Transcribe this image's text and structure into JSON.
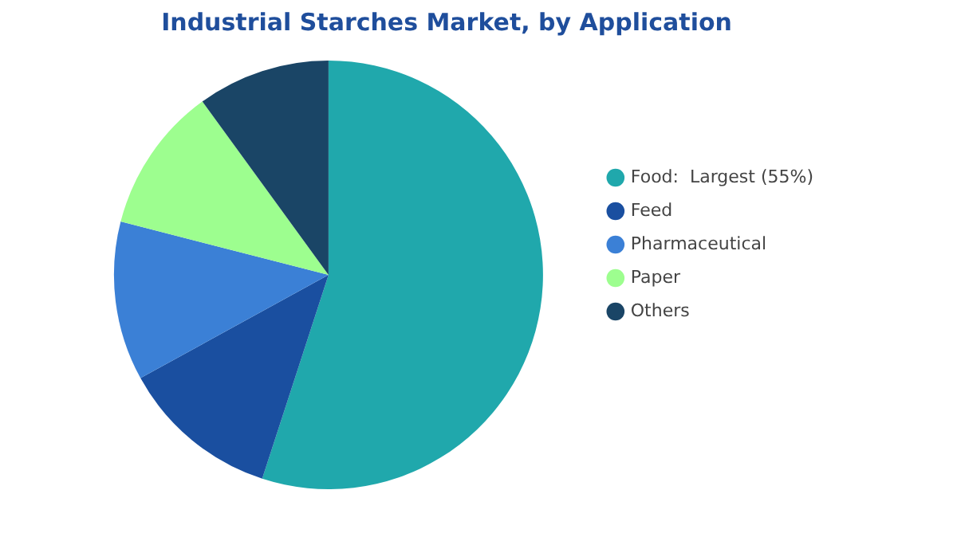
{
  "chart_data": {
    "type": "pie",
    "title": "Industrial Starches Market, by Application",
    "categories": [
      "Food:  Largest (55%)",
      "Feed",
      "Pharmaceutical",
      "Paper",
      "Others"
    ],
    "values": [
      55,
      12,
      12,
      11,
      10
    ],
    "colors": [
      "#20a8ac",
      "#1a4fa0",
      "#3b80d6",
      "#9dfe8f",
      "#1a4566"
    ],
    "legend": "right"
  }
}
